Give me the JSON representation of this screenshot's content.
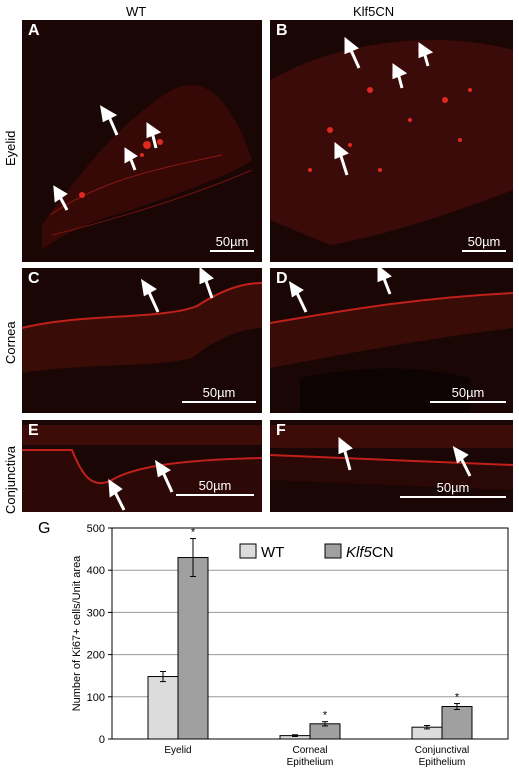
{
  "columns": [
    "WT",
    "Klf5CN"
  ],
  "rows": [
    "Eyelid",
    "Cornea",
    "Conjunctiva"
  ],
  "panels": [
    {
      "letter": "A",
      "scale": "50µm"
    },
    {
      "letter": "B",
      "scale": "50µm"
    },
    {
      "letter": "C",
      "scale": "50µm"
    },
    {
      "letter": "D",
      "scale": "50µm"
    },
    {
      "letter": "E",
      "scale": "50µm"
    },
    {
      "letter": "F",
      "scale": "50µm"
    }
  ],
  "chart_letter": "G",
  "colors": {
    "wt": "#dcdcdc",
    "klf5": "#a0a0a0",
    "tissue": "#c0201a"
  },
  "chart_data": {
    "type": "bar",
    "title": "",
    "xlabel": "",
    "ylabel": "Number of Ki67+ cells/Unit area",
    "ylim": [
      0,
      500
    ],
    "yticks": [
      0,
      100,
      200,
      300,
      400,
      500
    ],
    "categories": [
      "Eyelid",
      "Corneal Epithelium",
      "Conjunctival Epithelium"
    ],
    "category_lines": [
      [
        "Eyelid"
      ],
      [
        "Corneal",
        "Epithelium"
      ],
      [
        "Conjunctival",
        "Epithelium"
      ]
    ],
    "series": [
      {
        "name": "WT",
        "name_prefix": "",
        "name_italic": "",
        "name_suffix": "WT",
        "values": [
          148,
          8,
          28
        ],
        "errors": [
          12,
          2,
          4
        ],
        "star": [
          "",
          "",
          ""
        ]
      },
      {
        "name": "Klf5CN",
        "name_prefix": "",
        "name_italic": "Klf5",
        "name_suffix": "CN",
        "values": [
          430,
          36,
          77
        ],
        "errors": [
          45,
          5,
          7
        ],
        "star": [
          "*",
          "*",
          "*"
        ]
      }
    ],
    "grid": true,
    "legend": "top-right"
  }
}
